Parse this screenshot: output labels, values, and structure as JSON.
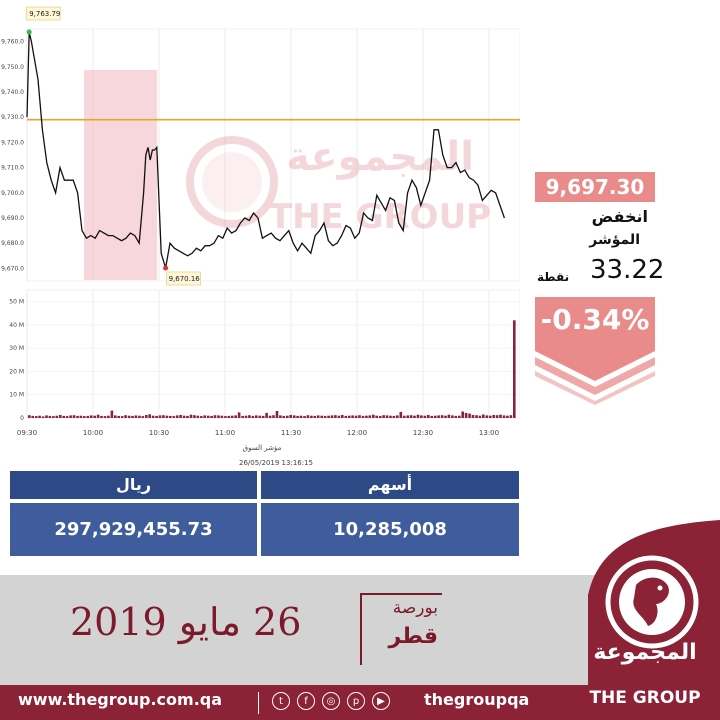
{
  "chart_data": [
    {
      "type": "line",
      "ylim": [
        9665,
        9765
      ],
      "y_ticks": [
        9670,
        9680,
        9690,
        9700,
        9710,
        9720,
        9730,
        9740,
        9750,
        9760
      ],
      "y_tick_labels": [
        "9,670.0",
        "9,680.0",
        "9,690.0",
        "9,700.0",
        "9,710.0",
        "9,720.0",
        "9,730.0",
        "9,740.0",
        "9,750.0",
        "9,760.0"
      ],
      "x_ticks": [
        "09:30",
        "10:00",
        "10:30",
        "11:00",
        "11:30",
        "12:00",
        "12:30",
        "13:00"
      ],
      "reference_line": 9729,
      "high_label": "9,763.79",
      "low_label": "9,670.16",
      "series": [
        {
          "x": [
            "09:30",
            "09:31",
            "09:32",
            "09:33",
            "09:35",
            "09:37",
            "09:39",
            "09:41",
            "09:43",
            "09:45",
            "09:47",
            "09:49",
            "09:51",
            "09:53",
            "09:55",
            "09:57",
            "09:59",
            "10:01",
            "10:03",
            "10:05",
            "10:07",
            "10:09",
            "10:11",
            "10:13",
            "10:15",
            "10:17",
            "10:19",
            "10:21",
            "10:23",
            "10:24",
            "10:25",
            "10:26",
            "10:27",
            "10:28",
            "10:29",
            "10:31",
            "10:33",
            "10:35",
            "10:37",
            "10:39",
            "10:41",
            "10:43",
            "10:45",
            "10:47",
            "10:49",
            "10:51",
            "10:53",
            "10:55",
            "10:57",
            "10:59",
            "11:01",
            "11:03",
            "11:05",
            "11:07",
            "11:09",
            "11:11",
            "11:13",
            "11:15",
            "11:17",
            "11:19",
            "11:21",
            "11:23",
            "11:25",
            "11:27",
            "11:29",
            "11:31",
            "11:33",
            "11:35",
            "11:37",
            "11:39",
            "11:41",
            "11:43",
            "11:45",
            "11:47",
            "11:49",
            "11:51",
            "11:53",
            "11:55",
            "11:57",
            "11:59",
            "12:01",
            "12:03",
            "12:05",
            "12:07",
            "12:09",
            "12:11",
            "12:13",
            "12:15",
            "12:17",
            "12:19",
            "12:21",
            "12:23",
            "12:25",
            "12:27",
            "12:29",
            "12:31",
            "12:33",
            "12:35",
            "12:37",
            "12:39",
            "12:41",
            "12:43",
            "12:45",
            "12:47",
            "12:49",
            "12:51",
            "12:53",
            "12:55",
            "12:57",
            "12:59",
            "13:01",
            "13:03",
            "13:05",
            "13:07"
          ],
          "y": [
            9730,
            9763.79,
            9760,
            9755,
            9745,
            9725,
            9712,
            9705,
            9700,
            9710,
            9705,
            9705,
            9705,
            9700,
            9685,
            9682,
            9683,
            9682,
            9685,
            9684,
            9683,
            9683,
            9682,
            9681,
            9682,
            9684,
            9683,
            9680,
            9700,
            9715,
            9718,
            9713,
            9717,
            9717,
            9718,
            9676,
            9670.16,
            9680,
            9678,
            9677,
            9676,
            9675,
            9676,
            9678,
            9677,
            9679,
            9679,
            9680,
            9683,
            9682,
            9686,
            9684,
            9685,
            9688,
            9690,
            9689,
            9692,
            9690,
            9682,
            9683,
            9684,
            9682,
            9681,
            9683,
            9685,
            9680,
            9677,
            9680,
            9678,
            9676,
            9683,
            9685,
            9688,
            9681,
            9679,
            9680,
            9683,
            9687,
            9686,
            9682,
            9684,
            9692,
            9690,
            9689,
            9699,
            9696,
            9693,
            9698,
            9697,
            9688,
            9685,
            9700,
            9705,
            9702,
            9695,
            9700,
            9705,
            9725,
            9725,
            9715,
            9710,
            9710,
            9712,
            9708,
            9709,
            9706,
            9705,
            9703,
            9697,
            9699,
            9701,
            9700,
            9695,
            9690
          ]
        }
      ]
    },
    {
      "type": "bar",
      "ylim": [
        0,
        55
      ],
      "y_tick_labels": [
        "0",
        "10 M",
        "20 M",
        "30 M",
        "40 M",
        "50 M"
      ],
      "y_ticks": [
        0,
        10,
        20,
        30,
        40,
        50
      ],
      "xlabel": "مؤشر السوق",
      "timestamp": "26/05/2019 13:16:15",
      "values": [
        1.2,
        0.9,
        0.8,
        1.0,
        0.7,
        1.1,
        0.9,
        0.8,
        1.0,
        1.3,
        0.9,
        0.8,
        1.1,
        1.2,
        0.9,
        1.0,
        0.8,
        0.9,
        1.1,
        1.0,
        1.4,
        0.9,
        0.8,
        1.0,
        3.2,
        1.1,
        0.9,
        0.8,
        1.2,
        1.0,
        0.9,
        1.1,
        1.0,
        0.8,
        1.3,
        1.6,
        1.0,
        0.9,
        1.1,
        1.2,
        1.0,
        0.9,
        0.8,
        1.1,
        1.3,
        1.0,
        0.9,
        1.4,
        1.2,
        1.0,
        0.8,
        1.1,
        1.0,
        0.9,
        1.2,
        1.1,
        1.0,
        0.8,
        0.9,
        1.0,
        1.1,
        2.4,
        0.9,
        1.0,
        1.2,
        0.9,
        1.1,
        1.0,
        0.9,
        2.2,
        1.0,
        1.2,
        3.0,
        1.1,
        0.9,
        1.0,
        1.3,
        1.1,
        0.9,
        1.0,
        0.8,
        1.2,
        1.0,
        0.9,
        1.1,
        1.0,
        0.9,
        1.0,
        1.1,
        1.2,
        1.0,
        1.3,
        0.9,
        1.0,
        1.1,
        1.0,
        1.2,
        0.9,
        1.0,
        1.1,
        1.4,
        1.0,
        0.9,
        1.2,
        1.1,
        1.0,
        0.9,
        1.1,
        2.6,
        1.0,
        1.1,
        1.2,
        1.0,
        1.4,
        1.1,
        1.0,
        1.3,
        0.9,
        1.0,
        1.1,
        1.2,
        1.0,
        1.4,
        1.1,
        0.9,
        1.0,
        2.8,
        2.2,
        1.9,
        1.3,
        1.2,
        1.0,
        1.5,
        1.1,
        1.0,
        1.3,
        1.2,
        1.4,
        1.1,
        1.0,
        1.2,
        42
      ]
    }
  ],
  "panel": {
    "price": "9,697.30",
    "change_word": "انخفض",
    "index_word": "المؤشر",
    "points": "33.22",
    "points_unit": "نقطة",
    "percent": "-0.34%"
  },
  "table": {
    "headers": [
      "ريال",
      "أسهم"
    ],
    "values": [
      "297,929,455.73",
      "10,285,008"
    ]
  },
  "date": "26 مايو 2019",
  "bourse": {
    "line1": "بورصة",
    "line2": "قطر"
  },
  "footer": {
    "url": "www.thegroup.com.qa",
    "handle": "thegroupqa",
    "social_icons": [
      "twitter-icon",
      "facebook-icon",
      "instagram-icon",
      "pinterest-icon",
      "youtube-icon"
    ]
  },
  "logo": {
    "arabic": "المجموعة",
    "english": "THE GROUP"
  },
  "watermark": {
    "arabic": "المجموعة",
    "english": "THE GROUP"
  },
  "colors": {
    "price_box": "#e98b8b",
    "line": "#111111",
    "reference": "#e0a92a",
    "table_header": "#2d4a87",
    "table_value": "#3f5d9c",
    "maroon": "#8b2236"
  }
}
